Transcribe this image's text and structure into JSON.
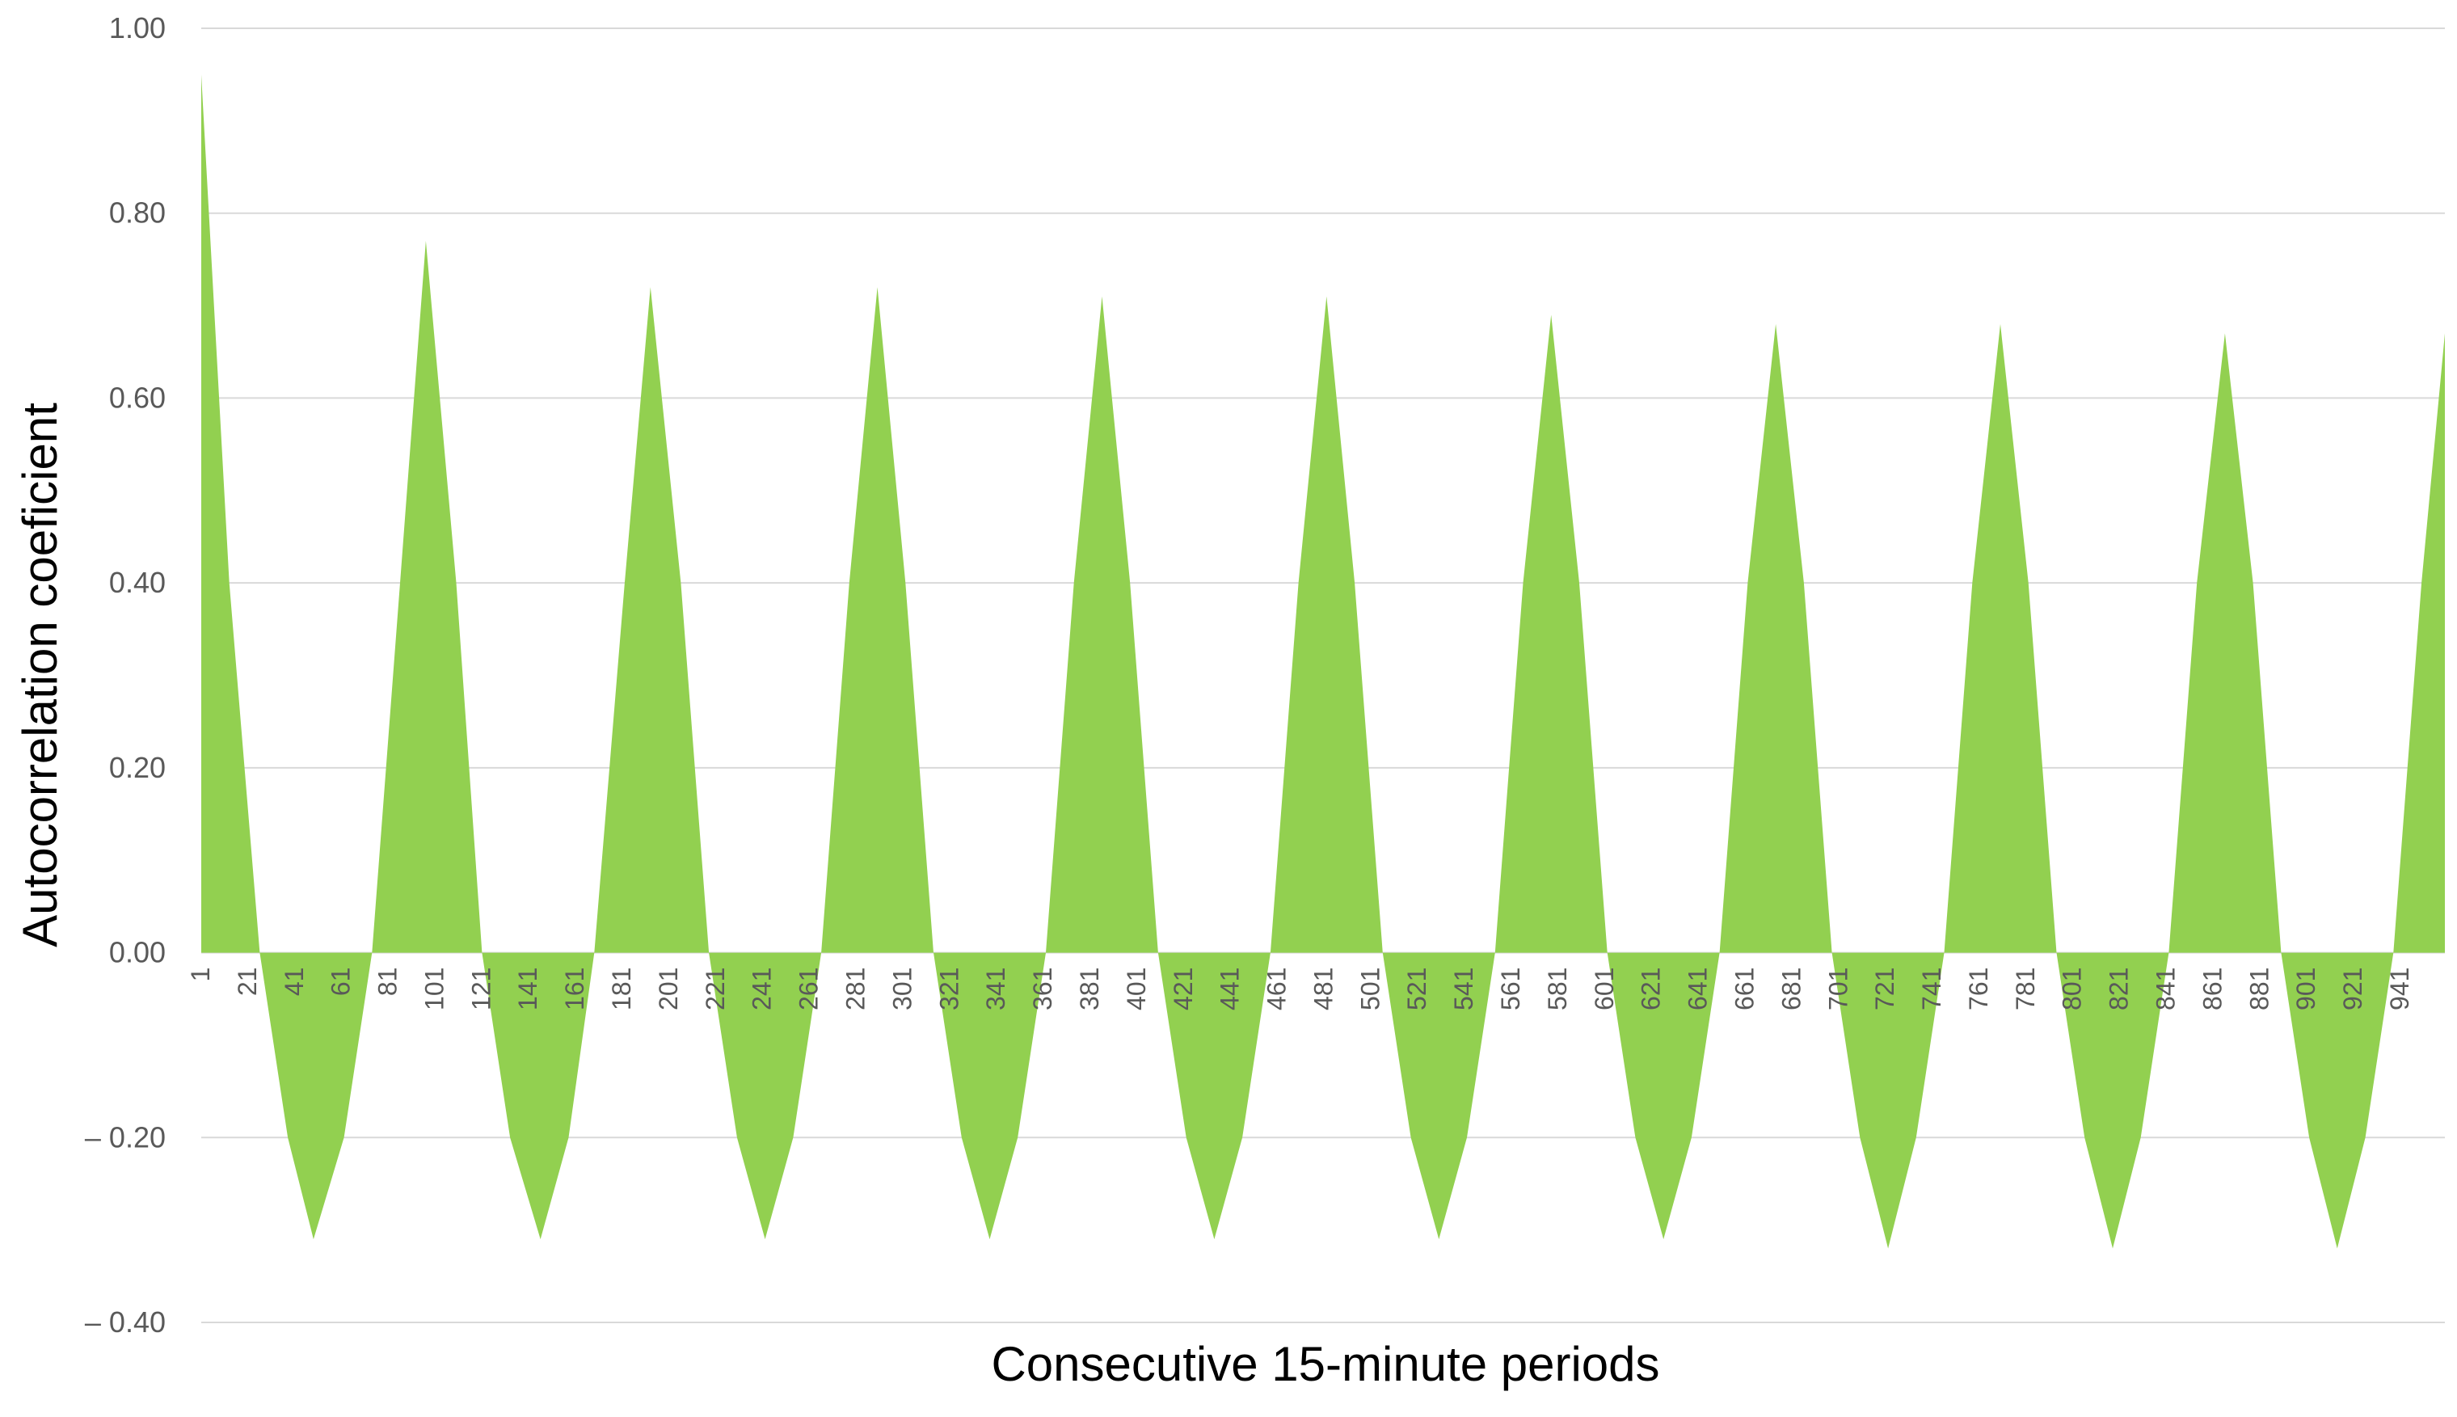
{
  "chart_data": {
    "type": "area",
    "title": "",
    "xlabel": "Consecutive 15-minute periods",
    "ylabel": "Autocorrelation coeficient",
    "ylim": [
      -0.4,
      1.0
    ],
    "xlim": [
      1,
      960
    ],
    "y_ticks": [
      {
        "value": 1.0,
        "label": "1.00"
      },
      {
        "value": 0.8,
        "label": "0.80"
      },
      {
        "value": 0.6,
        "label": "0.60"
      },
      {
        "value": 0.4,
        "label": "0.40"
      },
      {
        "value": 0.2,
        "label": "0.20"
      },
      {
        "value": 0.0,
        "label": "0.00"
      },
      {
        "value": -0.2,
        "label": "– 0.20"
      },
      {
        "value": -0.4,
        "label": "– 0.40"
      }
    ],
    "x_tick_labels": [
      "1",
      "21",
      "41",
      "61",
      "81",
      "101",
      "121",
      "141",
      "161",
      "181",
      "201",
      "221",
      "241",
      "261",
      "281",
      "301",
      "321",
      "341",
      "361",
      "381",
      "401",
      "421",
      "441",
      "461",
      "481",
      "501",
      "521",
      "541",
      "561",
      "581",
      "601",
      "621",
      "641",
      "661",
      "681",
      "701",
      "721",
      "741",
      "761",
      "781",
      "801",
      "821",
      "841",
      "861",
      "881",
      "901",
      "921",
      "941"
    ],
    "grid": true,
    "legend": "none",
    "fill_color": "#92d050",
    "series": [
      {
        "x": [
          1,
          13,
          26,
          38,
          49,
          62,
          74,
          86,
          97,
          110,
          121,
          133,
          146,
          158,
          169,
          182,
          193,
          206,
          218,
          230,
          242,
          254,
          266,
          278,
          290,
          302,
          314,
          326,
          338,
          350,
          362,
          374,
          386,
          398,
          410,
          422,
          434,
          446,
          458,
          470,
          482,
          494,
          506,
          518,
          530,
          542,
          554,
          566,
          578,
          590,
          602,
          614,
          626,
          638,
          650,
          662,
          674,
          686,
          698,
          710,
          722,
          734,
          746,
          758,
          770,
          782,
          794,
          806,
          818,
          830,
          842,
          854,
          866,
          878,
          890,
          902,
          914,
          926,
          938,
          950,
          960
        ],
        "y": [
          0.95,
          0.4,
          0.0,
          -0.2,
          -0.31,
          -0.2,
          0.0,
          0.4,
          0.77,
          0.4,
          0.0,
          -0.2,
          -0.31,
          -0.2,
          0.0,
          0.4,
          0.72,
          0.4,
          0.0,
          -0.2,
          -0.31,
          -0.2,
          0.0,
          0.4,
          0.72,
          0.4,
          0.0,
          -0.2,
          -0.31,
          -0.2,
          0.0,
          0.4,
          0.71,
          0.4,
          0.0,
          -0.2,
          -0.31,
          -0.2,
          0.0,
          0.4,
          0.71,
          0.4,
          0.0,
          -0.2,
          -0.31,
          -0.2,
          0.0,
          0.4,
          0.69,
          0.4,
          0.0,
          -0.2,
          -0.31,
          -0.2,
          0.0,
          0.4,
          0.68,
          0.4,
          0.0,
          -0.2,
          -0.32,
          -0.2,
          0.0,
          0.4,
          0.68,
          0.4,
          0.0,
          -0.2,
          -0.32,
          -0.2,
          0.0,
          0.4,
          0.67,
          0.4,
          0.0,
          -0.2,
          -0.32,
          -0.2,
          0.0,
          0.4,
          0.67
        ]
      }
    ]
  }
}
